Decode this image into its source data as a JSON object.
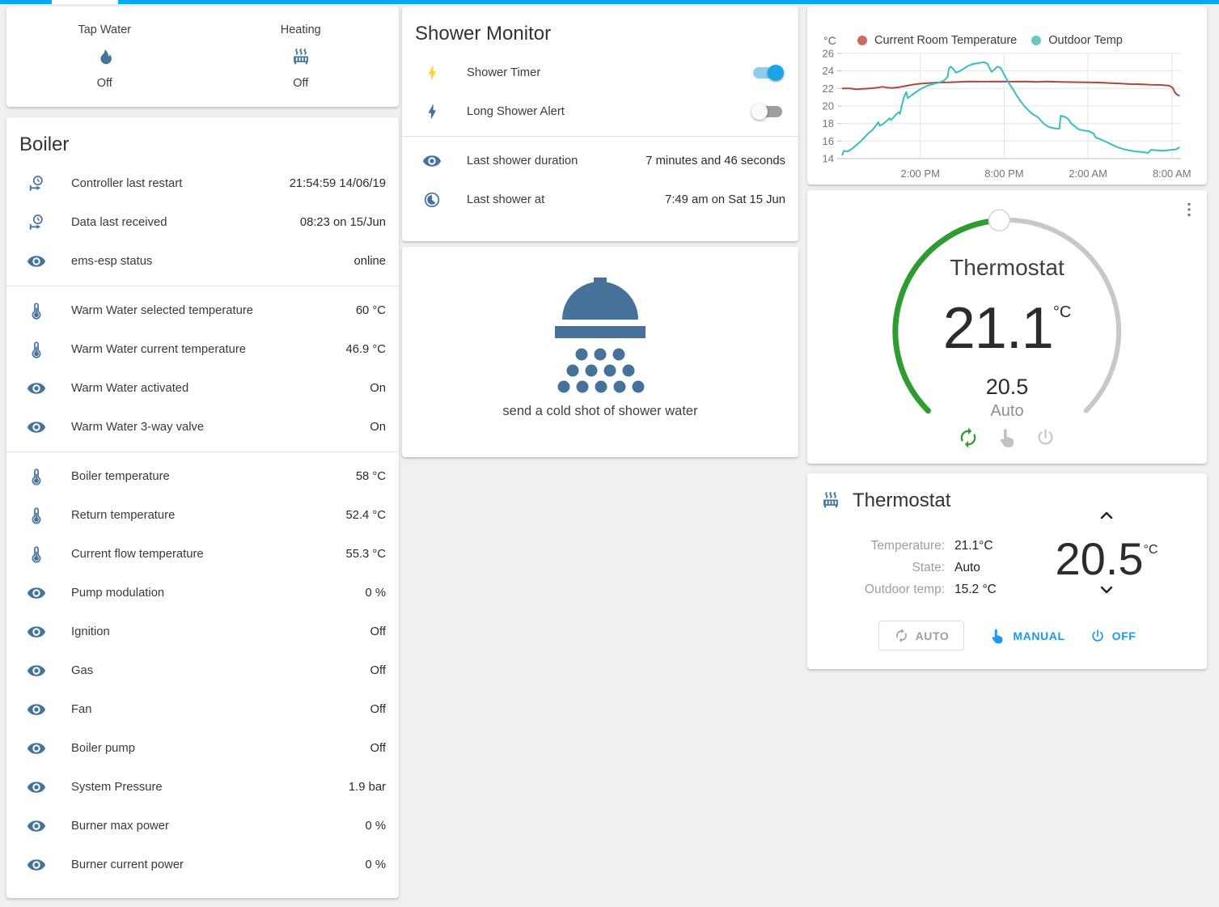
{
  "colors": {
    "accent": "#03a9f4",
    "icon_blue": "#44739e",
    "toggle_on": "#1ca4e9",
    "action_blue": "#2196f3",
    "dial_green": "#2d9c31",
    "flash_yellow": "#fdd13a"
  },
  "glance_card": {
    "items": [
      {
        "label": "Tap Water",
        "icon": "fire-icon",
        "state": "Off"
      },
      {
        "label": "Heating",
        "icon": "radiator-icon",
        "state": "Off"
      }
    ]
  },
  "boiler_card": {
    "title": "Boiler",
    "sections": [
      {
        "rows": [
          {
            "icon": "clock-start-icon",
            "label": "Controller last restart",
            "value": "21:54:59 14/06/19"
          },
          {
            "icon": "clock-start-icon",
            "label": "Data last received",
            "value": "08:23 on 15/Jun"
          },
          {
            "icon": "eye-icon",
            "label": "ems-esp status",
            "value": "online"
          }
        ]
      },
      {
        "rows": [
          {
            "icon": "thermometer-icon",
            "label": "Warm Water selected temperature",
            "value": "60 °C"
          },
          {
            "icon": "thermometer-icon",
            "label": "Warm Water current temperature",
            "value": "46.9 °C"
          },
          {
            "icon": "eye-icon",
            "label": "Warm Water activated",
            "value": "On"
          },
          {
            "icon": "eye-icon",
            "label": "Warm Water 3-way valve",
            "value": "On"
          }
        ]
      },
      {
        "rows": [
          {
            "icon": "thermometer-icon",
            "label": "Boiler temperature",
            "value": "58 °C"
          },
          {
            "icon": "thermometer-icon",
            "label": "Return temperature",
            "value": "52.4 °C"
          },
          {
            "icon": "thermometer-icon",
            "label": "Current flow temperature",
            "value": "55.3 °C"
          },
          {
            "icon": "eye-icon",
            "label": "Pump modulation",
            "value": "0 %"
          },
          {
            "icon": "eye-icon",
            "label": "Ignition",
            "value": "Off"
          },
          {
            "icon": "eye-icon",
            "label": "Gas",
            "value": "Off"
          },
          {
            "icon": "eye-icon",
            "label": "Fan",
            "value": "Off"
          },
          {
            "icon": "eye-icon",
            "label": "Boiler pump",
            "value": "Off"
          },
          {
            "icon": "eye-icon",
            "label": "System Pressure",
            "value": "1.9 bar"
          },
          {
            "icon": "eye-icon",
            "label": "Burner max power",
            "value": "0 %"
          },
          {
            "icon": "eye-icon",
            "label": "Burner current power",
            "value": "0 %"
          }
        ]
      }
    ]
  },
  "shower_card": {
    "title": "Shower Monitor",
    "toggles": [
      {
        "icon": "flash-icon",
        "icon_color": "#fdd13a",
        "label": "Shower Timer",
        "on": true
      },
      {
        "icon": "flash-icon",
        "icon_color": "#44739e",
        "label": "Long Shower Alert",
        "on": false
      }
    ],
    "rows": [
      {
        "icon": "eye-icon",
        "label": "Last shower duration",
        "value": "7 minutes and 46 seconds"
      },
      {
        "icon": "clock-time-icon",
        "label": "Last shower at",
        "value": "7:49 am on Sat 15 Jun"
      }
    ]
  },
  "shower_picture_card": {
    "icon": "shower-head-icon",
    "caption": "send a cold shot of shower water"
  },
  "chart_card": {
    "chart_data": {
      "type": "line",
      "ylabel": "°C",
      "ylim": [
        14,
        26
      ],
      "y_ticks": [
        26,
        24,
        22,
        20,
        18,
        16,
        14
      ],
      "xlim": [
        8.35,
        32.65
      ],
      "x_ticks": [
        {
          "t": 14,
          "label": "2:00 PM"
        },
        {
          "t": 20,
          "label": "8:00 PM"
        },
        {
          "t": 26,
          "label": "2:00 AM"
        },
        {
          "t": 32,
          "label": "8:00 AM"
        }
      ],
      "legend_position": "top",
      "grid": true,
      "series": [
        {
          "name": "Current Room Temperature",
          "color": "#b5443c",
          "legend_color": "#cd6a66",
          "points": [
            [
              8.4,
              22
            ],
            [
              9,
              22
            ],
            [
              9.4,
              21.9
            ],
            [
              9.8,
              21.95
            ],
            [
              10.4,
              22
            ],
            [
              11,
              22.1
            ],
            [
              11.3,
              22.2
            ],
            [
              11.6,
              22.1
            ],
            [
              12,
              22.05
            ],
            [
              12.5,
              22.15
            ],
            [
              13,
              22.3
            ],
            [
              13.5,
              22.45
            ],
            [
              14,
              22.55
            ],
            [
              14.6,
              22.6
            ],
            [
              15.2,
              22.68
            ],
            [
              16,
              22.7
            ],
            [
              16.8,
              22.75
            ],
            [
              17.5,
              22.8
            ],
            [
              18.5,
              22.78
            ],
            [
              19.5,
              22.8
            ],
            [
              20.5,
              22.78
            ],
            [
              21.5,
              22.8
            ],
            [
              22.3,
              22.75
            ],
            [
              23,
              22.8
            ],
            [
              24,
              22.75
            ],
            [
              25,
              22.72
            ],
            [
              26,
              22.7
            ],
            [
              26.8,
              22.68
            ],
            [
              27.5,
              22.62
            ],
            [
              28.2,
              22.58
            ],
            [
              29,
              22.5
            ],
            [
              29.8,
              22.48
            ],
            [
              30.5,
              22.42
            ],
            [
              31.2,
              22.4
            ],
            [
              31.8,
              22.32
            ],
            [
              32.05,
              22.1
            ],
            [
              32.2,
              21.6
            ],
            [
              32.35,
              21.3
            ],
            [
              32.55,
              21.15
            ]
          ]
        },
        {
          "name": "Outdoor Temp",
          "color": "#35bfbd",
          "legend_color": "#67c7c7",
          "points": [
            [
              8.4,
              14.35
            ],
            [
              8.55,
              14.9
            ],
            [
              8.8,
              14.8
            ],
            [
              9.1,
              15.1
            ],
            [
              9.4,
              15.5
            ],
            [
              9.7,
              15.9
            ],
            [
              10,
              16.4
            ],
            [
              10.3,
              16.9
            ],
            [
              10.6,
              17.3
            ],
            [
              10.85,
              17.8
            ],
            [
              11,
              18.15
            ],
            [
              11.1,
              17.75
            ],
            [
              11.35,
              17.95
            ],
            [
              11.6,
              18.3
            ],
            [
              11.8,
              18.6
            ],
            [
              11.9,
              18.4
            ],
            [
              12.2,
              18.9
            ],
            [
              12.45,
              19.3
            ],
            [
              12.55,
              19.1
            ],
            [
              12.7,
              20.2
            ],
            [
              12.85,
              21.1
            ],
            [
              13,
              21.6
            ],
            [
              13.1,
              20.9
            ],
            [
              13.35,
              21.2
            ],
            [
              13.7,
              21.6
            ],
            [
              14.1,
              22
            ],
            [
              14.5,
              22.3
            ],
            [
              14.9,
              22.5
            ],
            [
              15.3,
              22.65
            ],
            [
              15.7,
              22.9
            ],
            [
              15.95,
              23.3
            ],
            [
              16.05,
              24.3
            ],
            [
              16.2,
              24.5
            ],
            [
              16.4,
              24.15
            ],
            [
              16.55,
              23.8
            ],
            [
              16.8,
              23.95
            ],
            [
              17.1,
              24.25
            ],
            [
              17.45,
              24.6
            ],
            [
              17.8,
              24.8
            ],
            [
              18.2,
              24.9
            ],
            [
              18.55,
              25
            ],
            [
              18.8,
              24.85
            ],
            [
              18.95,
              24.35
            ],
            [
              19.1,
              23.9
            ],
            [
              19.3,
              24.15
            ],
            [
              19.5,
              24.5
            ],
            [
              19.75,
              24.35
            ],
            [
              20,
              23.6
            ],
            [
              20.3,
              22.7
            ],
            [
              20.6,
              22
            ],
            [
              20.9,
              21.2
            ],
            [
              21.2,
              20.5
            ],
            [
              21.5,
              19.9
            ],
            [
              21.8,
              19.4
            ],
            [
              22.1,
              19
            ],
            [
              22.4,
              18.75
            ],
            [
              22.65,
              18.3
            ],
            [
              22.9,
              17.9
            ],
            [
              23.2,
              17.6
            ],
            [
              23.6,
              17.45
            ],
            [
              23.95,
              17.4
            ],
            [
              24.05,
              18.9
            ],
            [
              24.35,
              18.75
            ],
            [
              24.6,
              18.5
            ],
            [
              24.8,
              18
            ],
            [
              25.05,
              17.7
            ],
            [
              25.3,
              17.35
            ],
            [
              25.7,
              17.2
            ],
            [
              26.1,
              17.1
            ],
            [
              26.4,
              16.85
            ],
            [
              26.55,
              16.4
            ],
            [
              26.9,
              16.2
            ],
            [
              27.3,
              15.9
            ],
            [
              27.7,
              15.6
            ],
            [
              28.1,
              15.3
            ],
            [
              28.5,
              15.1
            ],
            [
              28.9,
              14.95
            ],
            [
              29.4,
              14.8
            ],
            [
              29.9,
              14.75
            ],
            [
              30.3,
              14.65
            ],
            [
              30.5,
              15
            ],
            [
              30.9,
              14.95
            ],
            [
              31.4,
              14.9
            ],
            [
              31.9,
              15
            ],
            [
              32.3,
              15.05
            ],
            [
              32.55,
              15.3
            ]
          ]
        }
      ]
    }
  },
  "dial_card": {
    "title": "Thermostat",
    "current": "21.1",
    "unit": "°C",
    "target": "20.5",
    "mode": "Auto"
  },
  "thermostat_card": {
    "title": "Thermostat",
    "labels": {
      "temperature": "Temperature:",
      "state": "State:",
      "outdoor": "Outdoor temp:"
    },
    "values": {
      "temperature": "21.1°C",
      "state": "Auto",
      "outdoor": "15.2 °C"
    },
    "target": "20.5",
    "target_unit": "°C",
    "buttons": [
      {
        "id": "auto",
        "label": "AUTO"
      },
      {
        "id": "manual",
        "label": "MANUAL"
      },
      {
        "id": "off",
        "label": "OFF"
      }
    ]
  }
}
